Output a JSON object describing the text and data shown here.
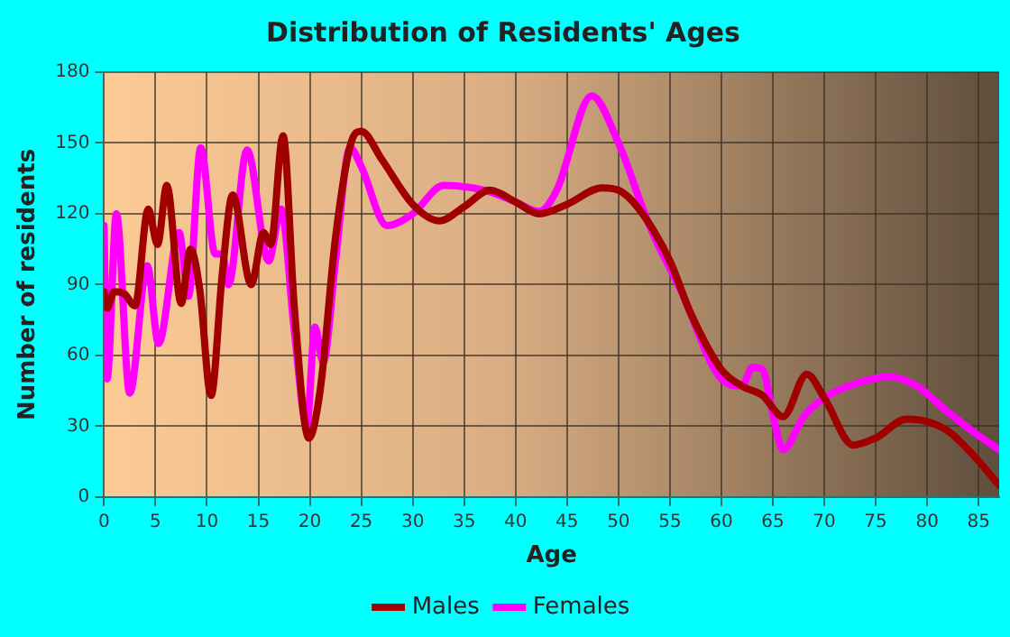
{
  "chart_data": {
    "type": "line",
    "title": "Distribution of Residents' Ages",
    "xlabel": "Age",
    "ylabel": "Number of residents",
    "xlim": [
      0,
      87
    ],
    "xticks": [
      0,
      5,
      10,
      15,
      20,
      25,
      30,
      35,
      40,
      45,
      50,
      55,
      60,
      65,
      70,
      75,
      80,
      85
    ],
    "ylim": [
      0,
      180
    ],
    "yticks": [
      0,
      30,
      60,
      90,
      120,
      150,
      180
    ],
    "grid": true,
    "legend": "bottom",
    "marker": "none",
    "line_style": "solid",
    "series": [
      {
        "name": "Males",
        "color": "#a00000",
        "x": [
          0,
          0.3,
          1,
          2,
          3,
          4.3,
          5.2,
          6.1,
          7.5,
          8.4,
          9.3,
          10.4,
          11.5,
          12.5,
          14.3,
          15.5,
          16.2,
          17.4,
          18.5,
          19.9,
          21,
          22.5,
          24,
          25,
          27,
          30,
          32.6,
          35,
          37.5,
          40,
          42.3,
          45,
          48.4,
          50,
          52,
          55,
          57,
          60,
          62,
          64,
          66,
          68.3,
          70,
          72.8,
          75,
          78,
          80,
          82,
          84,
          87
        ],
        "values": [
          87,
          80,
          87,
          86,
          81,
          122,
          107,
          132,
          82,
          105,
          88,
          43,
          95,
          128,
          90,
          112,
          107,
          153,
          80,
          25,
          45,
          110,
          150,
          155,
          143,
          124,
          117,
          123,
          130,
          125,
          120,
          124,
          131,
          130,
          122,
          100,
          78,
          54,
          47,
          43,
          34,
          52,
          42,
          22,
          25,
          33,
          32,
          28,
          20,
          5
        ]
      },
      {
        "name": "Females",
        "color": "#ff00ff",
        "x": [
          0,
          0.3,
          1.2,
          2.5,
          4.2,
          5.3,
          7.3,
          8.2,
          9.4,
          10.8,
          11.5,
          12.1,
          13.9,
          16,
          17.2,
          18.5,
          19.7,
          20.5,
          21.3,
          22.5,
          23.9,
          25,
          27.5,
          30,
          33,
          37,
          40,
          42.3,
          44,
          47.4,
          50,
          53,
          56,
          60,
          62,
          63,
          64,
          65,
          66,
          68,
          70,
          73,
          76.3,
          79,
          82,
          85,
          87
        ],
        "values": [
          115,
          50,
          120,
          44,
          98,
          65,
          112,
          85,
          148,
          103,
          103,
          90,
          147,
          100,
          122,
          70,
          30,
          72,
          57,
          100,
          148,
          140,
          115,
          120,
          132,
          130,
          125,
          121,
          130,
          170,
          150,
          115,
          88,
          50,
          47,
          55,
          54,
          35,
          20,
          34,
          42,
          48,
          51,
          47,
          36,
          26,
          20
        ]
      }
    ]
  }
}
